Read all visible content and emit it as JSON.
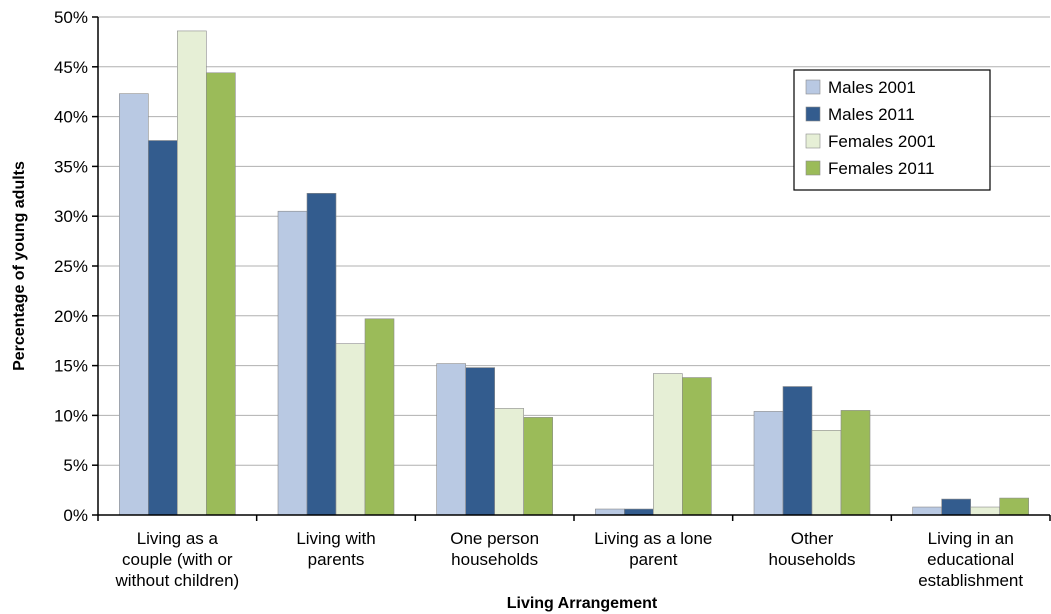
{
  "chart_data": {
    "type": "bar",
    "title": "",
    "xlabel": "Living Arrangement",
    "ylabel": "Percentage of young adults",
    "ylim": [
      0,
      50
    ],
    "yticks": [
      "0%",
      "5%",
      "10%",
      "15%",
      "20%",
      "25%",
      "30%",
      "35%",
      "40%",
      "45%",
      "50%"
    ],
    "grid": true,
    "legend_position": "top-right",
    "categories": [
      "Living as a couple (with or without children)",
      "Living with parents",
      "One person households",
      "Living as a lone parent",
      "Other households",
      "Living in an educational establishment"
    ],
    "category_lines": [
      [
        "Living as a",
        "couple (with or",
        "without children)"
      ],
      [
        "Living with",
        "parents"
      ],
      [
        "One person",
        "households"
      ],
      [
        "Living as a lone",
        "parent"
      ],
      [
        "Other",
        "households"
      ],
      [
        "Living in an",
        "educational",
        "establishment"
      ]
    ],
    "series": [
      {
        "name": "Males 2001",
        "color": "#b9c9e3",
        "values": [
          42.3,
          30.5,
          15.2,
          0.6,
          10.4,
          0.8
        ]
      },
      {
        "name": "Males 2011",
        "color": "#335c8e",
        "values": [
          37.6,
          32.3,
          14.8,
          0.6,
          12.9,
          1.6
        ]
      },
      {
        "name": "Females 2001",
        "color": "#e6efd6",
        "values": [
          48.6,
          17.2,
          10.7,
          14.2,
          8.5,
          0.8
        ]
      },
      {
        "name": "Females 2011",
        "color": "#9bbb59",
        "values": [
          44.4,
          19.7,
          9.8,
          13.8,
          10.5,
          1.7
        ]
      }
    ]
  }
}
